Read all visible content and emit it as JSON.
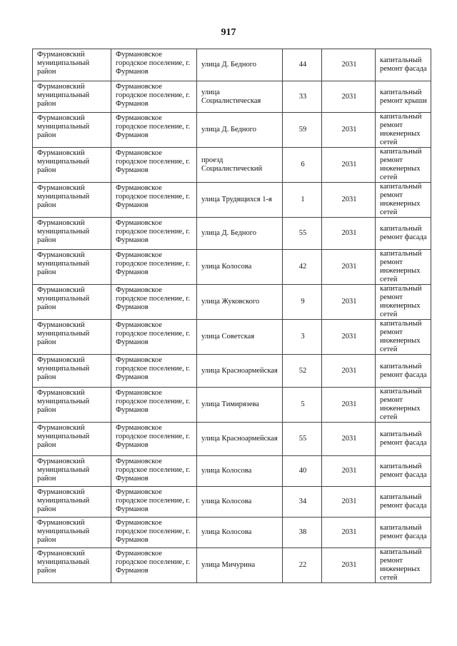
{
  "page_number": "917",
  "rows": [
    {
      "district": "Фурмановский муниципальный район",
      "settlement": "Фурмановское городское поселение, г. Фурманов",
      "street": "улица Д. Бедного",
      "house": "44",
      "year": "2031",
      "work": "капитальный ремонт фасада"
    },
    {
      "district": "Фурмановский муниципальный район",
      "settlement": "Фурмановское городское поселение, г. Фурманов",
      "street": "улица Социалистическая",
      "house": "33",
      "year": "2031",
      "work": "капитальный ремонт крыши"
    },
    {
      "district": "Фурмановский муниципальный район",
      "settlement": "Фурмановское городское поселение, г. Фурманов",
      "street": "улица Д. Бедного",
      "house": "59",
      "year": "2031",
      "work": "капитальный ремонт инженерных сетей"
    },
    {
      "district": "Фурмановский муниципальный район",
      "settlement": "Фурмановское городское поселение, г. Фурманов",
      "street": "проезд Социалистический",
      "house": "6",
      "year": "2031",
      "work": "капитальный ремонт инженерных сетей"
    },
    {
      "district": "Фурмановский муниципальный район",
      "settlement": "Фурмановское городское поселение, г. Фурманов",
      "street": "улица Трудящихся 1-я",
      "house": "1",
      "year": "2031",
      "work": "капитальный ремонт инженерных сетей"
    },
    {
      "district": "Фурмановский муниципальный район",
      "settlement": "Фурмановское городское поселение, г. Фурманов",
      "street": "улица Д. Бедного",
      "house": "55",
      "year": "2031",
      "work": "капитальный ремонт фасада"
    },
    {
      "district": "Фурмановский муниципальный район",
      "settlement": "Фурмановское городское поселение, г. Фурманов",
      "street": "улица Колосова",
      "house": "42",
      "year": "2031",
      "work": "капитальный ремонт инженерных сетей"
    },
    {
      "district": "Фурмановский муниципальный район",
      "settlement": "Фурмановское городское поселение, г. Фурманов",
      "street": "улица  Жуковского",
      "house": "9",
      "year": "2031",
      "work": "капитальный ремонт инженерных сетей"
    },
    {
      "district": "Фурмановский муниципальный район",
      "settlement": "Фурмановское городское поселение, г. Фурманов",
      "street": "улица Советская",
      "house": "3",
      "year": "2031",
      "work": "капитальный ремонт инженерных сетей"
    },
    {
      "district": "Фурмановский муниципальный район",
      "settlement": "Фурмановское городское поселение, г. Фурманов",
      "street": "улица Красноармейская",
      "house": "52",
      "year": "2031",
      "work": "капитальный ремонт фасада"
    },
    {
      "district": "Фурмановский муниципальный район",
      "settlement": "Фурмановское городское поселение, г. Фурманов",
      "street": "улица Тимирязева",
      "house": "5",
      "year": "2031",
      "work": "капитальный ремонт инженерных сетей"
    },
    {
      "district": "Фурмановский муниципальный район",
      "settlement": "Фурмановское городское поселение, г. Фурманов",
      "street": "улица Красноармейская",
      "house": "55",
      "year": "2031",
      "work": "капитальный ремонт фасада"
    },
    {
      "district": "Фурмановский муниципальный район",
      "settlement": "Фурмановское городское поселение, г. Фурманов",
      "street": "улица Колосова",
      "house": "40",
      "year": "2031",
      "work": "капитальный ремонт фасада"
    },
    {
      "district": "Фурмановский муниципальный район",
      "settlement": "Фурмановское городское поселение, г. Фурманов",
      "street": "улица Колосова",
      "house": "34",
      "year": "2031",
      "work": "капитальный ремонт фасада"
    },
    {
      "district": "Фурмановский муниципальный район",
      "settlement": "Фурмановское городское поселение, г. Фурманов",
      "street": "улица Колосова",
      "house": "38",
      "year": "2031",
      "work": "капитальный ремонт фасада"
    },
    {
      "district": "Фурмановский муниципальный район",
      "settlement": "Фурмановское городское поселение, г. Фурманов",
      "street": "улица Мичурина",
      "house": "22",
      "year": "2031",
      "work": "капитальный ремонт инженерных сетей"
    }
  ]
}
